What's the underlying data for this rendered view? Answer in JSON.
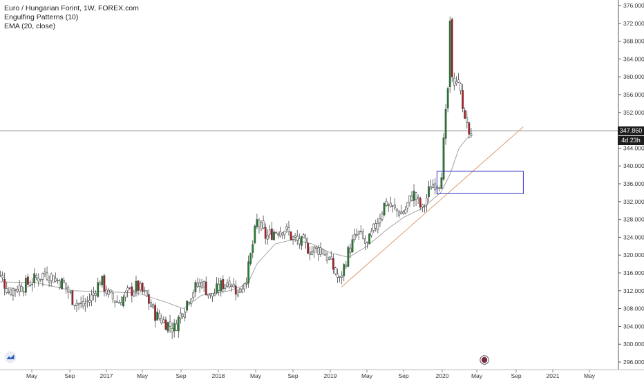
{
  "legend": {
    "title": "Euro / Hungarian Forint, 1W, FOREX.com",
    "indicator1": "Engulfing Patterns (10)",
    "indicator2": "EMA (20, close)"
  },
  "last_price": {
    "value": "347.860",
    "countdown": "4d 23h"
  },
  "colors": {
    "bull": "#1a8a2a",
    "bear": "#c0141e",
    "neutral": "#ffffff",
    "wick": "#444444",
    "ema": "#9a9a9a",
    "trendline": "#e09a6c",
    "box": "#3333cc",
    "grid_axis": "#555555"
  },
  "chart_data": {
    "type": "candlestick",
    "title": "Euro / Hungarian Forint, 1W, FOREX.com",
    "ylim": [
      294,
      378
    ],
    "y_ticks": [
      "296.000",
      "300.000",
      "304.000",
      "308.000",
      "312.000",
      "316.000",
      "320.000",
      "324.000",
      "328.000",
      "332.000",
      "336.000",
      "340.000",
      "344.000",
      "348.000",
      "352.000",
      "356.000",
      "360.000",
      "364.000",
      "368.000",
      "372.000",
      "376.000"
    ],
    "x_ticks": [
      "May",
      "Sep",
      "2017",
      "May",
      "Sep",
      "2018",
      "May",
      "Sep",
      "2019",
      "May",
      "Sep",
      "2020",
      "May",
      "Sep",
      "2021",
      "May"
    ],
    "horizontal_line": 347.86,
    "trendline": {
      "from": [
        "2019-03",
        312.8
      ],
      "to": [
        "2020-11",
        348.8
      ]
    },
    "zone": {
      "from": "2020-01",
      "to": "2020-11",
      "low": 333.8,
      "high": 338.8
    },
    "close_anchors": [
      [
        "2016-02",
        315.5
      ],
      [
        "2016-03",
        312.0
      ],
      [
        "2016-05",
        313.5
      ],
      [
        "2016-07",
        316.0
      ],
      [
        "2016-09",
        313.5
      ],
      [
        "2016-10",
        310.0
      ],
      [
        "2016-11",
        308.5
      ],
      [
        "2016-12",
        310.5
      ],
      [
        "2017-01",
        314.5
      ],
      [
        "2017-02",
        310.5
      ],
      [
        "2017-03",
        309.5
      ],
      [
        "2017-04",
        311.5
      ],
      [
        "2017-05",
        313.0
      ],
      [
        "2017-06",
        310.5
      ],
      [
        "2017-07",
        306.5
      ],
      [
        "2017-08",
        305.0
      ],
      [
        "2017-09",
        303.5
      ],
      [
        "2017-10",
        308.0
      ],
      [
        "2017-11",
        312.0
      ],
      [
        "2017-12",
        314.0
      ],
      [
        "2018-01",
        310.5
      ],
      [
        "2018-02",
        313.0
      ],
      [
        "2018-03",
        314.5
      ],
      [
        "2018-04",
        311.5
      ],
      [
        "2018-05",
        316.0
      ],
      [
        "2018-06",
        327.5
      ],
      [
        "2018-07",
        324.0
      ],
      [
        "2018-08",
        325.5
      ],
      [
        "2018-09",
        326.0
      ],
      [
        "2018-10",
        323.5
      ],
      [
        "2018-11",
        322.5
      ],
      [
        "2018-12",
        321.0
      ],
      [
        "2019-01",
        321.5
      ],
      [
        "2019-02",
        318.5
      ],
      [
        "2019-03",
        314.0
      ],
      [
        "2019-04",
        321.0
      ],
      [
        "2019-05",
        325.0
      ],
      [
        "2019-06",
        322.0
      ],
      [
        "2019-07",
        327.0
      ],
      [
        "2019-08",
        332.0
      ],
      [
        "2019-09",
        330.0
      ],
      [
        "2019-10",
        329.5
      ],
      [
        "2019-11",
        334.0
      ],
      [
        "2019-12",
        330.0
      ],
      [
        "2020-01",
        336.0
      ],
      [
        "2020-02",
        336.5
      ],
      [
        "2020-03",
        363.0
      ],
      [
        "2020-04",
        355.5
      ],
      [
        "2020-05",
        348.5
      ]
    ],
    "ema_anchors": [
      [
        "2016-02",
        314.0
      ],
      [
        "2016-06",
        313.8
      ],
      [
        "2016-10",
        312.0
      ],
      [
        "2017-01",
        311.8
      ],
      [
        "2017-05",
        311.5
      ],
      [
        "2017-08",
        309.5
      ],
      [
        "2017-10",
        308.0
      ],
      [
        "2017-12",
        311.0
      ],
      [
        "2018-03",
        312.0
      ],
      [
        "2018-05",
        313.5
      ],
      [
        "2018-06",
        318.0
      ],
      [
        "2018-08",
        322.5
      ],
      [
        "2018-10",
        323.5
      ],
      [
        "2018-12",
        322.5
      ],
      [
        "2019-02",
        320.5
      ],
      [
        "2019-04",
        319.5
      ],
      [
        "2019-06",
        322.0
      ],
      [
        "2019-08",
        325.5
      ],
      [
        "2019-10",
        328.5
      ],
      [
        "2019-12",
        330.5
      ],
      [
        "2020-02",
        334.0
      ],
      [
        "2020-03",
        338.0
      ],
      [
        "2020-04",
        344.0
      ],
      [
        "2020-05",
        346.5
      ]
    ]
  }
}
